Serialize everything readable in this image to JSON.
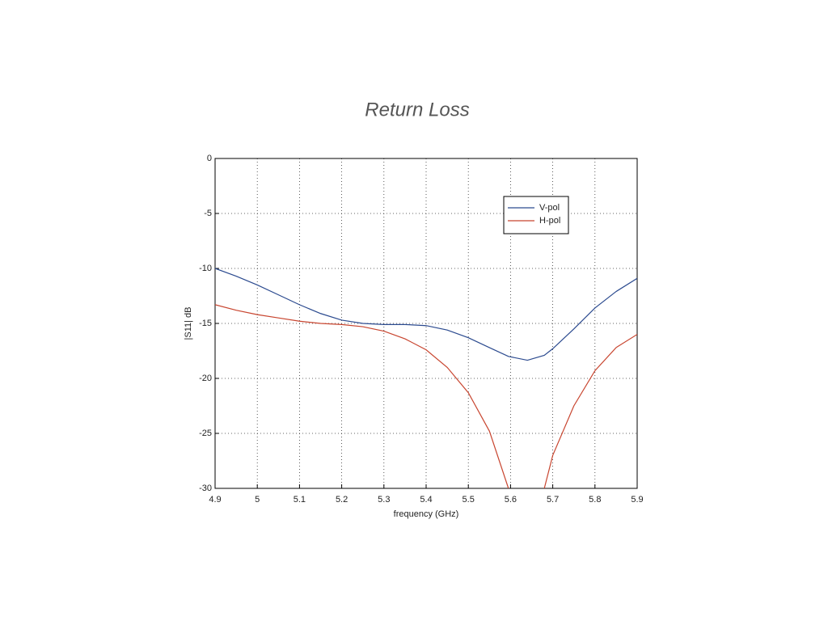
{
  "chart_data": {
    "type": "line",
    "title": "Return Loss",
    "x_label": "frequency (GHz)",
    "y_label": "|S11| dB",
    "x": [
      4.9,
      4.95,
      5.0,
      5.05,
      5.1,
      5.15,
      5.2,
      5.25,
      5.3,
      5.35,
      5.4,
      5.45,
      5.5,
      5.55,
      5.595,
      5.64,
      5.68,
      5.7,
      5.75,
      5.8,
      5.85,
      5.9
    ],
    "series": [
      {
        "name": "V-pol",
        "color": "#2b4a8f",
        "values": [
          -10,
          -10.7,
          -11.5,
          -12.4,
          -13.3,
          -14.1,
          -14.7,
          -15.0,
          -15.1,
          -15.1,
          -15.2,
          -15.6,
          -16.3,
          -17.2,
          -18.0,
          -18.35,
          -17.9,
          -17.3,
          -15.5,
          -13.6,
          -12.1,
          -10.9
        ]
      },
      {
        "name": "H-pol",
        "color": "#c8452f",
        "values": [
          -13.3,
          -13.8,
          -14.2,
          -14.5,
          -14.8,
          -15.0,
          -15.1,
          -15.3,
          -15.7,
          -16.4,
          -17.4,
          -19.0,
          -21.3,
          -24.8,
          -30,
          null,
          -30,
          -27.0,
          -22.5,
          -19.3,
          -17.2,
          -16.0
        ]
      }
    ],
    "xlim": [
      4.9,
      5.9
    ],
    "xticks": [
      4.9,
      5,
      5.1,
      5.2,
      5.3,
      5.4,
      5.5,
      5.6,
      5.7,
      5.8,
      5.9
    ],
    "ylim": [
      -30,
      0
    ],
    "yticks": [
      -30,
      -25,
      -20,
      -15,
      -10,
      -5,
      0
    ],
    "grid": true,
    "legend": "upper right"
  }
}
